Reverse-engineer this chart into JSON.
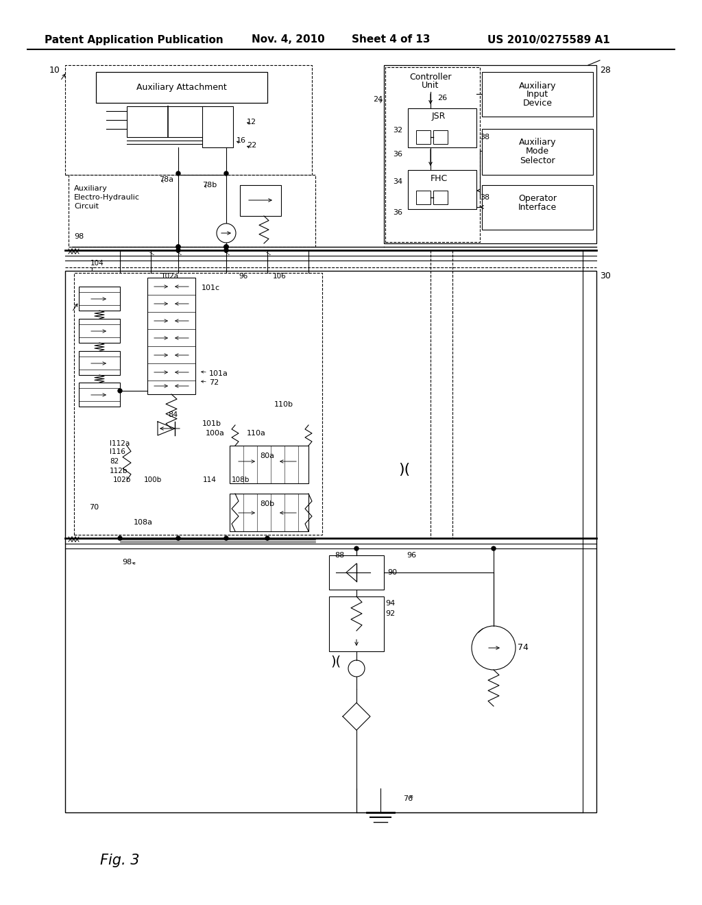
{
  "bg_color": "#ffffff",
  "line_color": "#000000",
  "header_text": "Patent Application Publication",
  "header_date": "Nov. 4, 2010",
  "header_sheet": "Sheet 4 of 13",
  "header_patent": "US 2010/0275589 A1",
  "fig_label": "Fig. 3"
}
